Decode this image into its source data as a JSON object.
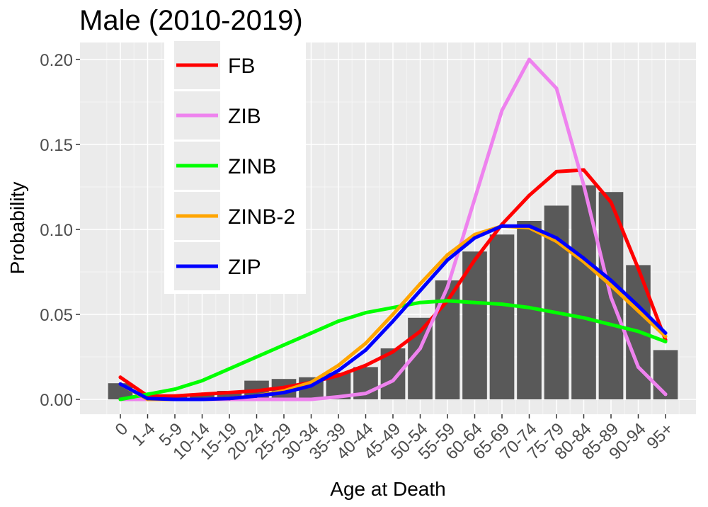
{
  "chart_data": {
    "type": "bar",
    "title": "Male (2010-2019)",
    "xlabel": "Age at Death",
    "ylabel": "Probability",
    "ylim": [
      0,
      0.2
    ],
    "yticks": [
      0.0,
      0.05,
      0.1,
      0.15,
      0.2
    ],
    "ytick_labels": [
      "0.00",
      "0.05",
      "0.10",
      "0.15",
      "0.20"
    ],
    "grid": true,
    "legend_position": "top-left",
    "categories": [
      "0",
      "1-4",
      "5-9",
      "10-14",
      "15-19",
      "20-24",
      "25-29",
      "30-34",
      "35-39",
      "40-44",
      "45-49",
      "50-54",
      "55-59",
      "60-64",
      "65-69",
      "70-74",
      "75-79",
      "80-84",
      "85-89",
      "90-94",
      "95+"
    ],
    "bar_color": "#595959",
    "bar_values": [
      0.0095,
      0.0015,
      0.0025,
      0.003,
      0.005,
      0.011,
      0.012,
      0.013,
      0.0155,
      0.019,
      0.03,
      0.048,
      0.07,
      0.087,
      0.097,
      0.105,
      0.114,
      0.126,
      0.122,
      0.079,
      0.029
    ],
    "series": [
      {
        "name": "FB",
        "color": "#ff0000",
        "values": [
          0.013,
          0.002,
          0.002,
          0.003,
          0.004,
          0.005,
          0.007,
          0.01,
          0.014,
          0.02,
          0.028,
          0.04,
          0.058,
          0.082,
          0.103,
          0.12,
          0.134,
          0.135,
          0.116,
          0.077,
          0.035
        ]
      },
      {
        "name": "ZIB",
        "color": "#ee82ee",
        "values": [
          0.0,
          0.0,
          0.0,
          0.0,
          0.0,
          0.0,
          0.0,
          0.0,
          0.0015,
          0.0035,
          0.011,
          0.03,
          0.066,
          0.118,
          0.17,
          0.2,
          0.183,
          0.126,
          0.06,
          0.019,
          0.003
        ]
      },
      {
        "name": "ZINB",
        "color": "#00ff00",
        "values": [
          0.0,
          0.003,
          0.006,
          0.011,
          0.018,
          0.025,
          0.032,
          0.039,
          0.046,
          0.051,
          0.054,
          0.057,
          0.058,
          0.057,
          0.056,
          0.054,
          0.051,
          0.048,
          0.044,
          0.04,
          0.034
        ]
      },
      {
        "name": "ZINB-2",
        "color": "#ffa500",
        "values": [
          0.009,
          0.0,
          0.0,
          0.0,
          0.0005,
          0.002,
          0.005,
          0.01,
          0.02,
          0.033,
          0.05,
          0.068,
          0.085,
          0.097,
          0.102,
          0.101,
          0.093,
          0.081,
          0.067,
          0.052,
          0.037
        ]
      },
      {
        "name": "ZIP",
        "color": "#0000ff",
        "values": [
          0.009,
          0.0005,
          0.0,
          0.0,
          0.0005,
          0.002,
          0.004,
          0.008,
          0.017,
          0.029,
          0.046,
          0.064,
          0.082,
          0.095,
          0.102,
          0.102,
          0.095,
          0.083,
          0.07,
          0.055,
          0.039
        ]
      }
    ]
  }
}
